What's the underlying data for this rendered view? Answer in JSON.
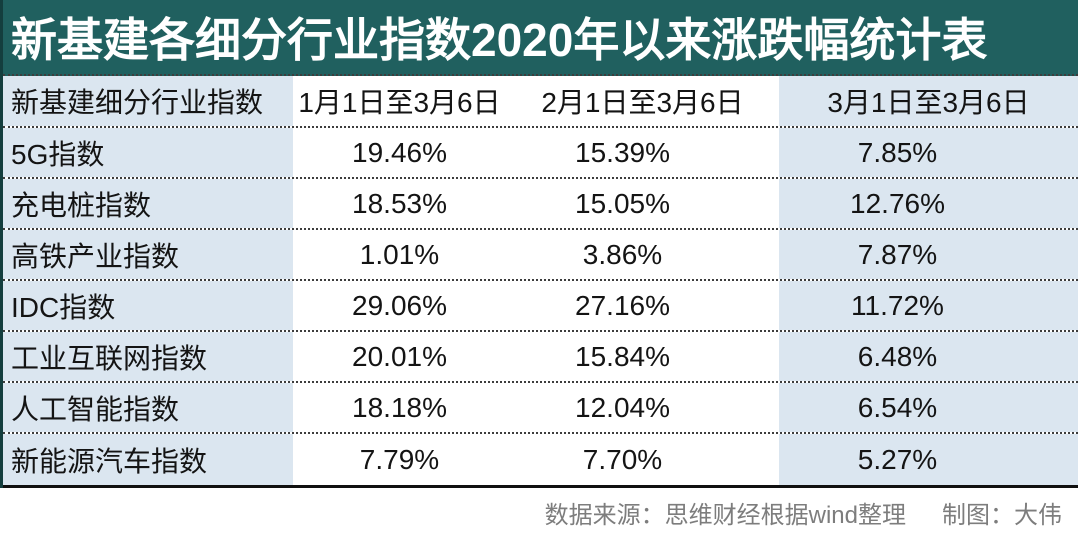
{
  "title": "新基建各细分行业指数2020年以来涨跌幅统计表",
  "colors": {
    "title_band_teal": "#20605f",
    "title_text_white": "#ffffff",
    "cell_light_blue": "#dbe6f0",
    "table_border_dark": "#143e3e",
    "bottom_rule_dark": "#101010",
    "footer_text_gray": "#7d7d7d"
  },
  "table": {
    "headers": [
      "新基建细分行业指数",
      "1月1日至3月6日",
      "2月1日至3月6日",
      "3月1日至3月6日"
    ],
    "rows": [
      {
        "name": "5G指数",
        "values": [
          "19.46%",
          "15.39%",
          "7.85%"
        ]
      },
      {
        "name": "充电桩指数",
        "values": [
          "18.53%",
          "15.05%",
          "12.76%"
        ]
      },
      {
        "name": "高铁产业指数",
        "values": [
          "1.01%",
          "3.86%",
          "7.87%"
        ]
      },
      {
        "name": "IDC指数",
        "values": [
          "29.06%",
          "27.16%",
          "11.72%"
        ]
      },
      {
        "name": "工业互联网指数",
        "values": [
          "20.01%",
          "15.84%",
          "6.48%"
        ]
      },
      {
        "name": "人工智能指数",
        "values": [
          "18.18%",
          "12.04%",
          "6.54%"
        ]
      },
      {
        "name": "新能源汽车指数",
        "values": [
          "7.79%",
          "7.70%",
          "5.27%"
        ]
      }
    ]
  },
  "footer": {
    "source": "数据来源：思维财经根据wind整理",
    "credit": "制图：大伟"
  },
  "chart_data": {
    "type": "table",
    "title": "新基建各细分行业指数2020年以来涨跌幅统计表",
    "columns": [
      "新基建细分行业指数",
      "1月1日至3月6日",
      "2月1日至3月6日",
      "3月1日至3月6日"
    ],
    "categories": [
      "5G指数",
      "充电桩指数",
      "高铁产业指数",
      "IDC指数",
      "工业互联网指数",
      "人工智能指数",
      "新能源汽车指数"
    ],
    "series": [
      {
        "name": "1月1日至3月6日",
        "values": [
          19.46,
          18.53,
          1.01,
          29.06,
          20.01,
          18.18,
          7.79
        ]
      },
      {
        "name": "2月1日至3月6日",
        "values": [
          15.39,
          15.05,
          3.86,
          27.16,
          15.84,
          12.04,
          7.7
        ]
      },
      {
        "name": "3月1日至3月6日",
        "values": [
          7.85,
          12.76,
          7.87,
          11.72,
          6.48,
          6.54,
          5.27
        ]
      }
    ],
    "unit": "%",
    "source": "数据来源：思维财经根据wind整理",
    "credit": "制图：大伟"
  }
}
